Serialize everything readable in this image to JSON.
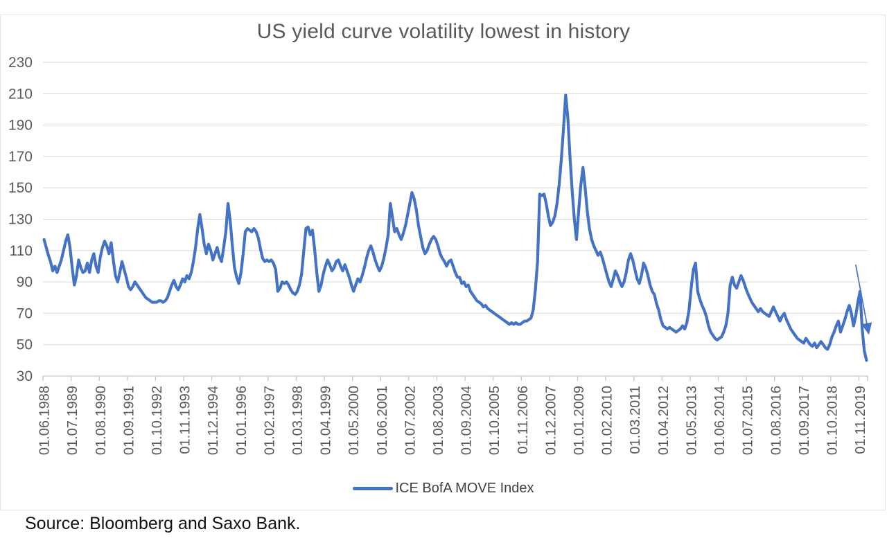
{
  "title": "US yield curve volatility lowest in history",
  "source_note": "Source: Bloomberg and Saxo Bank.",
  "legend": {
    "label": "ICE BofA MOVE Index"
  },
  "colors": {
    "line": "#4472C4",
    "gridline": "#d9d9d9",
    "axis_line": "#c6c6c6",
    "tick_label": "#595959",
    "title": "#595959",
    "legend_text": "#3f3f3f",
    "source_text": "#111111",
    "arrow": "#4472C4"
  },
  "chart_data": {
    "type": "line",
    "title": "US yield curve volatility lowest in history",
    "series_name": "ICE BofA MOVE Index",
    "x_start": "01.06.1988",
    "x_end": "01.02.2020",
    "x_freq": "monthly",
    "xlabel": "",
    "ylabel": "",
    "ylim": [
      30,
      230
    ],
    "y_tick_step": 20,
    "grid": true,
    "legend_position": "bottom",
    "tick_interval_months": 13,
    "tick_labels": [
      "01.06.1988",
      "01.07.1989",
      "01.08.1990",
      "01.09.1991",
      "01.10.1992",
      "01.11.1993",
      "01.12.1994",
      "01.01.1996",
      "01.02.1997",
      "01.03.1998",
      "01.04.1999",
      "01.05.2000",
      "01.06.2001",
      "01.07.2002",
      "01.08.2003",
      "01.09.2004",
      "01.10.2005",
      "01.11.2006",
      "01.12.2007",
      "01.01.2009",
      "01.02.2010",
      "01.03.2011",
      "01.04.2012",
      "01.05.2013",
      "01.06.2014",
      "01.07.2015",
      "01.08.2016",
      "01.09.2017",
      "01.10.2018",
      "01.11.2019"
    ],
    "annotation_arrow": {
      "from_index": 375,
      "from_value": 101,
      "to_index": 381,
      "to_value": 57
    },
    "values": [
      117,
      112,
      107,
      103,
      97,
      100,
      96,
      100,
      104,
      110,
      116,
      120,
      112,
      99,
      88,
      94,
      104,
      99,
      96,
      97,
      102,
      96,
      104,
      108,
      100,
      96,
      106,
      112,
      116,
      113,
      108,
      115,
      104,
      94,
      90,
      96,
      103,
      98,
      93,
      87,
      85,
      87,
      90,
      88,
      86,
      84,
      82,
      80,
      79,
      78,
      77,
      77,
      77,
      78,
      78,
      77,
      78,
      80,
      84,
      88,
      91,
      87,
      85,
      88,
      92,
      90,
      94,
      92,
      96,
      103,
      112,
      124,
      133,
      124,
      114,
      108,
      114,
      110,
      104,
      108,
      112,
      106,
      103,
      112,
      122,
      140,
      129,
      113,
      99,
      93,
      89,
      96,
      108,
      122,
      124,
      123,
      122,
      124,
      122,
      118,
      111,
      105,
      103,
      104,
      103,
      104,
      102,
      98,
      84,
      86,
      90,
      89,
      90,
      88,
      85,
      83,
      82,
      84,
      88,
      95,
      110,
      124,
      125,
      120,
      123,
      111,
      96,
      84,
      88,
      95,
      100,
      104,
      101,
      97,
      99,
      103,
      104,
      100,
      97,
      101,
      97,
      93,
      88,
      84,
      88,
      92,
      90,
      94,
      99,
      105,
      110,
      113,
      109,
      104,
      100,
      97,
      100,
      105,
      112,
      120,
      140,
      131,
      122,
      124,
      120,
      117,
      121,
      126,
      133,
      140,
      147,
      143,
      136,
      126,
      119,
      112,
      108,
      110,
      114,
      117,
      119,
      117,
      113,
      108,
      105,
      103,
      100,
      103,
      104,
      100,
      96,
      93,
      93,
      89,
      90,
      87,
      88,
      84,
      82,
      80,
      78,
      77,
      76,
      74,
      75,
      73,
      72,
      71,
      70,
      69,
      68,
      67,
      66,
      65,
      64,
      63,
      64,
      63,
      64,
      63,
      63,
      64,
      65,
      65,
      66,
      67,
      72,
      85,
      103,
      146,
      145,
      146,
      140,
      132,
      126,
      128,
      132,
      140,
      152,
      168,
      188,
      209,
      195,
      170,
      148,
      130,
      117,
      135,
      152,
      163,
      150,
      135,
      124,
      117,
      113,
      110,
      107,
      109,
      105,
      100,
      95,
      90,
      87,
      92,
      97,
      94,
      90,
      87,
      90,
      96,
      104,
      108,
      104,
      98,
      92,
      89,
      94,
      102,
      99,
      94,
      88,
      84,
      82,
      76,
      72,
      66,
      62,
      61,
      60,
      61,
      60,
      59,
      58,
      59,
      60,
      62,
      60,
      64,
      72,
      86,
      98,
      102,
      84,
      79,
      75,
      72,
      68,
      62,
      58,
      56,
      54,
      53,
      54,
      55,
      58,
      62,
      70,
      88,
      93,
      88,
      86,
      90,
      94,
      91,
      87,
      83,
      80,
      77,
      75,
      73,
      71,
      73,
      71,
      70,
      69,
      68,
      71,
      74,
      71,
      68,
      65,
      68,
      70,
      66,
      63,
      60,
      58,
      56,
      54,
      53,
      52,
      51,
      54,
      52,
      50,
      49,
      51,
      48,
      50,
      52,
      50,
      48,
      47,
      50,
      55,
      58,
      62,
      65,
      58,
      62,
      66,
      71,
      75,
      70,
      62,
      68,
      77,
      84,
      60,
      46,
      40
    ]
  }
}
